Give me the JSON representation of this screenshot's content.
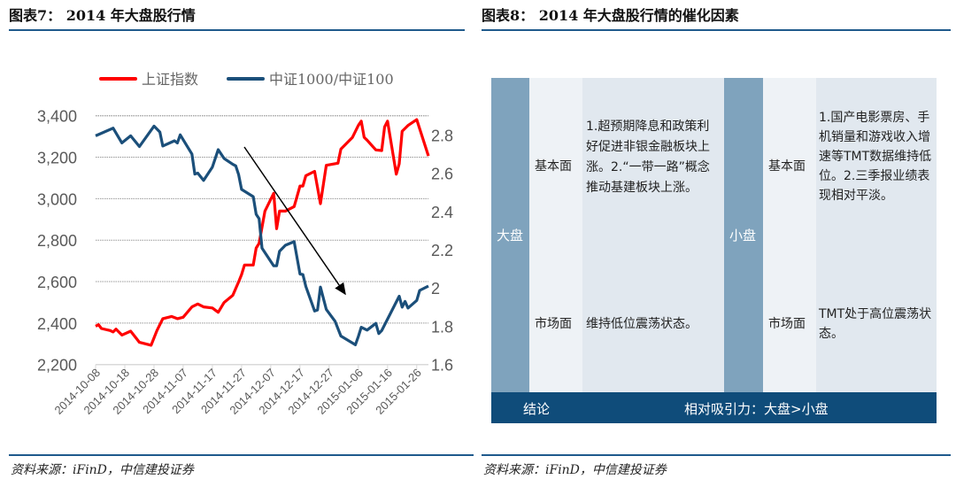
{
  "left": {
    "title": "图表7： 2014 年大盘股行情",
    "source": "资料来源：iFinD，中信建投证券"
  },
  "right": {
    "title": "图表8： 2014 年大盘股行情的催化因素",
    "source": "资料来源：iFinD，中信建投证券",
    "table": {
      "large": {
        "label": "大盘",
        "fundamentals_label": "基本面",
        "fundamentals": "1.超预期降息和政策利好促进非银金融板块上涨。2.“一带一路”概念推动基建板块上涨。",
        "market_label": "市场面",
        "market": "维持低位震荡状态。"
      },
      "small": {
        "label": "小盘",
        "fundamentals_label": "基本面",
        "fundamentals": "1.国产电影票房、手机销量和游戏收入增速等TMT数据维持低位。2.三季报业绩表现相对平淡。",
        "market_label": "市场面",
        "market": "TMT处于高位震荡状态。"
      },
      "conclusion_label": "结论",
      "conclusion": "相对吸引力：大盘>小盘"
    },
    "colors": {
      "side": "#7fa3bd",
      "label_bg": "#eef2f6",
      "content_bg": "#e1e8ef",
      "conclusion_bg": "#0f4c7a"
    }
  },
  "chart_data": {
    "type": "line",
    "legend_position": "top",
    "grid": "horizontal dotted",
    "x_ticks": [
      "2014-10-08",
      "2014-10-18",
      "2014-10-28",
      "2014-11-07",
      "2014-11-17",
      "2014-11-27",
      "2014-12-07",
      "2014-12-17",
      "2014-12-27",
      "2015-01-06",
      "2015-01-16",
      "2015-01-26"
    ],
    "xlim": [
      "2014-10-08",
      "2015-01-30"
    ],
    "y_left": {
      "ticks": [
        "2,200",
        "2,400",
        "2,600",
        "2,800",
        "3,000",
        "3,200",
        "3,400"
      ],
      "lim": [
        2200,
        3400
      ]
    },
    "y_right": {
      "ticks": [
        "1.6",
        "1.8",
        "2",
        "2.2",
        "2.4",
        "2.6",
        "2.8"
      ],
      "lim": [
        1.6,
        2.9
      ]
    },
    "series": [
      {
        "name": "上证指数",
        "axis": "left",
        "color": "#ff0000",
        "points": [
          [
            "2014-10-08",
            2385
          ],
          [
            "2014-10-09",
            2392
          ],
          [
            "2014-10-10",
            2374
          ],
          [
            "2014-10-13",
            2364
          ],
          [
            "2014-10-14",
            2357
          ],
          [
            "2014-10-15",
            2371
          ],
          [
            "2014-10-17",
            2342
          ],
          [
            "2014-10-20",
            2361
          ],
          [
            "2014-10-23",
            2307
          ],
          [
            "2014-10-27",
            2293
          ],
          [
            "2014-10-29",
            2364
          ],
          [
            "2014-10-31",
            2421
          ],
          [
            "2014-11-03",
            2432
          ],
          [
            "2014-11-05",
            2421
          ],
          [
            "2014-11-07",
            2428
          ],
          [
            "2014-11-10",
            2478
          ],
          [
            "2014-11-12",
            2492
          ],
          [
            "2014-11-14",
            2478
          ],
          [
            "2014-11-17",
            2473
          ],
          [
            "2014-11-19",
            2452
          ],
          [
            "2014-11-21",
            2499
          ],
          [
            "2014-11-24",
            2534
          ],
          [
            "2014-11-26",
            2599
          ],
          [
            "2014-11-27",
            2634
          ],
          [
            "2014-11-28",
            2680
          ],
          [
            "2014-12-01",
            2680
          ],
          [
            "2014-12-02",
            2762
          ],
          [
            "2014-12-03",
            2784
          ],
          [
            "2014-12-05",
            2940
          ],
          [
            "2014-12-08",
            3026
          ],
          [
            "2014-12-09",
            2855
          ],
          [
            "2014-12-10",
            2940
          ],
          [
            "2014-12-12",
            2940
          ],
          [
            "2014-12-15",
            2962
          ],
          [
            "2014-12-16",
            3011
          ],
          [
            "2014-12-17",
            3061
          ],
          [
            "2014-12-18",
            3061
          ],
          [
            "2014-12-19",
            3111
          ],
          [
            "2014-12-22",
            3132
          ],
          [
            "2014-12-24",
            2976
          ],
          [
            "2014-12-26",
            3161
          ],
          [
            "2014-12-30",
            3171
          ],
          [
            "2014-12-31",
            3239
          ],
          [
            "2015-01-04",
            3296
          ],
          [
            "2015-01-06",
            3353
          ],
          [
            "2015-01-07",
            3374
          ],
          [
            "2015-01-08",
            3296
          ],
          [
            "2015-01-09",
            3282
          ],
          [
            "2015-01-12",
            3235
          ],
          [
            "2015-01-14",
            3232
          ],
          [
            "2015-01-15",
            3346
          ],
          [
            "2015-01-16",
            3374
          ],
          [
            "2015-01-19",
            3118
          ],
          [
            "2015-01-20",
            3168
          ],
          [
            "2015-01-21",
            3325
          ],
          [
            "2015-01-23",
            3353
          ],
          [
            "2015-01-26",
            3381
          ],
          [
            "2015-01-30",
            3206
          ]
        ]
      },
      {
        "name": "中证1000/中证100",
        "axis": "right",
        "color": "#1b4f7a",
        "points": [
          [
            "2014-10-08",
            2.795
          ],
          [
            "2014-10-14",
            2.835
          ],
          [
            "2014-10-17",
            2.758
          ],
          [
            "2014-10-20",
            2.795
          ],
          [
            "2014-10-23",
            2.739
          ],
          [
            "2014-10-28",
            2.846
          ],
          [
            "2014-10-30",
            2.815
          ],
          [
            "2014-10-31",
            2.742
          ],
          [
            "2014-11-04",
            2.769
          ],
          [
            "2014-11-05",
            2.758
          ],
          [
            "2014-11-06",
            2.8
          ],
          [
            "2014-11-10",
            2.7
          ],
          [
            "2014-11-11",
            2.595
          ],
          [
            "2014-11-12",
            2.6
          ],
          [
            "2014-11-14",
            2.562
          ],
          [
            "2014-11-17",
            2.631
          ],
          [
            "2014-11-19",
            2.723
          ],
          [
            "2014-11-21",
            2.677
          ],
          [
            "2014-11-24",
            2.646
          ],
          [
            "2014-11-25",
            2.638
          ],
          [
            "2014-11-26",
            2.592
          ],
          [
            "2014-11-27",
            2.515
          ],
          [
            "2014-12-01",
            2.477
          ],
          [
            "2014-12-02",
            2.385
          ],
          [
            "2014-12-03",
            2.362
          ],
          [
            "2014-12-04",
            2.208
          ],
          [
            "2014-12-08",
            2.116
          ],
          [
            "2014-12-09",
            2.116
          ],
          [
            "2014-12-10",
            2.192
          ],
          [
            "2014-12-12",
            2.223
          ],
          [
            "2014-12-15",
            2.242
          ],
          [
            "2014-12-17",
            2.073
          ],
          [
            "2014-12-18",
            2.07
          ],
          [
            "2014-12-19",
            2.008
          ],
          [
            "2014-12-22",
            1.88
          ],
          [
            "2014-12-23",
            1.885
          ],
          [
            "2014-12-24",
            2.005
          ],
          [
            "2014-12-26",
            1.888
          ],
          [
            "2014-12-29",
            1.826
          ],
          [
            "2014-12-31",
            1.749
          ],
          [
            "2015-01-05",
            1.703
          ],
          [
            "2015-01-06",
            1.746
          ],
          [
            "2015-01-07",
            1.795
          ],
          [
            "2015-01-09",
            1.78
          ],
          [
            "2015-01-12",
            1.815
          ],
          [
            "2015-01-13",
            1.762
          ],
          [
            "2015-01-14",
            1.777
          ],
          [
            "2015-01-20",
            1.957
          ],
          [
            "2015-01-21",
            1.9
          ],
          [
            "2015-01-22",
            1.93
          ],
          [
            "2015-01-23",
            1.895
          ],
          [
            "2015-01-26",
            1.935
          ],
          [
            "2015-01-27",
            1.987
          ],
          [
            "2015-01-30",
            2.01
          ]
        ]
      }
    ]
  }
}
